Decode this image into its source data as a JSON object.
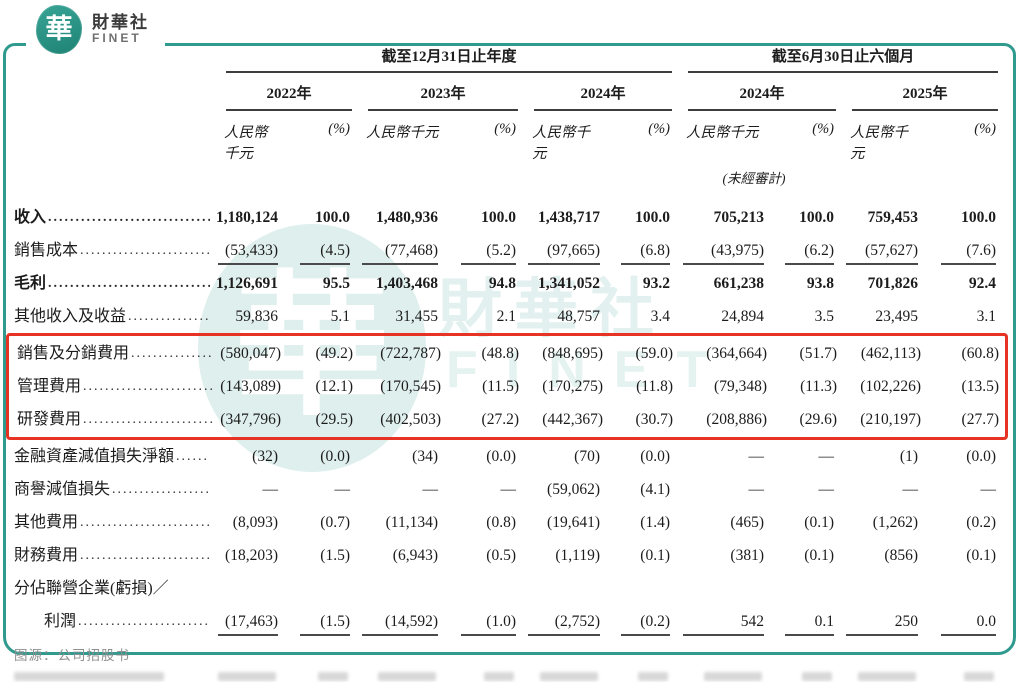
{
  "brand": {
    "logo_glyph": "華",
    "name_cn": "財華社",
    "name_en": "FINET"
  },
  "watermark": {
    "glyph": "華",
    "text_cn": "財華社",
    "text_en": "FINET"
  },
  "colors": {
    "frame_teal": "#2f9a8d",
    "logo_teal": "#1e8374",
    "highlight_red": "#e63323",
    "rule_gray": "#3d3d3d"
  },
  "table": {
    "groups": [
      {
        "label": "截至12月31日止年度"
      },
      {
        "label": "截至6月30日止六個月"
      }
    ],
    "years": [
      "2022年",
      "2023年",
      "2024年",
      "2024年",
      "2025年"
    ],
    "unit_amount": "人民幣千元",
    "unit_pct": "(%)",
    "unaudited": "(未經審計)",
    "leader": "..................................................................",
    "rows": [
      {
        "label": "收入",
        "leader": true,
        "bold": true,
        "ruled": false,
        "highlight": false,
        "indent": false,
        "values": [
          "1,180,124",
          "100.0",
          "1,480,936",
          "100.0",
          "1,438,717",
          "100.0",
          "705,213",
          "100.0",
          "759,453",
          "100.0"
        ]
      },
      {
        "label": "銷售成本",
        "leader": true,
        "bold": false,
        "ruled": true,
        "highlight": false,
        "indent": false,
        "values": [
          "(53,433)",
          "(4.5)",
          "(77,468)",
          "(5.2)",
          "(97,665)",
          "(6.8)",
          "(43,975)",
          "(6.2)",
          "(57,627)",
          "(7.6)"
        ]
      },
      {
        "label": "毛利",
        "leader": true,
        "bold": true,
        "ruled": false,
        "highlight": false,
        "indent": false,
        "values": [
          "1,126,691",
          "95.5",
          "1,403,468",
          "94.8",
          "1,341,052",
          "93.2",
          "661,238",
          "93.8",
          "701,826",
          "92.4"
        ]
      },
      {
        "label": "其他收入及收益",
        "leader": true,
        "bold": false,
        "ruled": false,
        "highlight": false,
        "indent": false,
        "values": [
          "59,836",
          "5.1",
          "31,455",
          "2.1",
          "48,757",
          "3.4",
          "24,894",
          "3.5",
          "23,495",
          "3.1"
        ]
      },
      {
        "label": "銷售及分銷費用",
        "leader": true,
        "bold": false,
        "ruled": false,
        "highlight": true,
        "indent": false,
        "values": [
          "(580,047)",
          "(49.2)",
          "(722,787)",
          "(48.8)",
          "(848,695)",
          "(59.0)",
          "(364,664)",
          "(51.7)",
          "(462,113)",
          "(60.8)"
        ]
      },
      {
        "label": "管理費用",
        "leader": true,
        "bold": false,
        "ruled": false,
        "highlight": true,
        "indent": false,
        "values": [
          "(143,089)",
          "(12.1)",
          "(170,545)",
          "(11.5)",
          "(170,275)",
          "(11.8)",
          "(79,348)",
          "(11.3)",
          "(102,226)",
          "(13.5)"
        ]
      },
      {
        "label": "研發費用",
        "leader": true,
        "bold": false,
        "ruled": false,
        "highlight": true,
        "indent": false,
        "values": [
          "(347,796)",
          "(29.5)",
          "(402,503)",
          "(27.2)",
          "(442,367)",
          "(30.7)",
          "(208,886)",
          "(29.6)",
          "(210,197)",
          "(27.7)"
        ]
      },
      {
        "label": "金融資產減值損失淨額",
        "leader": true,
        "bold": false,
        "ruled": false,
        "highlight": false,
        "indent": false,
        "values": [
          "(32)",
          "(0.0)",
          "(34)",
          "(0.0)",
          "(70)",
          "(0.0)",
          "—",
          "—",
          "(1)",
          "(0.0)"
        ]
      },
      {
        "label": "商譽減值損失",
        "leader": true,
        "bold": false,
        "ruled": false,
        "highlight": false,
        "indent": false,
        "values": [
          "—",
          "—",
          "—",
          "—",
          "(59,062)",
          "(4.1)",
          "—",
          "—",
          "—",
          "—"
        ]
      },
      {
        "label": "其他費用",
        "leader": true,
        "bold": false,
        "ruled": false,
        "highlight": false,
        "indent": false,
        "values": [
          "(8,093)",
          "(0.7)",
          "(11,134)",
          "(0.8)",
          "(19,641)",
          "(1.4)",
          "(465)",
          "(0.1)",
          "(1,262)",
          "(0.2)"
        ]
      },
      {
        "label": "財務費用",
        "leader": true,
        "bold": false,
        "ruled": false,
        "highlight": false,
        "indent": false,
        "values": [
          "(18,203)",
          "(1.5)",
          "(6,943)",
          "(0.5)",
          "(1,119)",
          "(0.1)",
          "(381)",
          "(0.1)",
          "(856)",
          "(0.1)"
        ]
      },
      {
        "label": "分佔聯營企業(虧損)／",
        "leader": false,
        "bold": false,
        "ruled": false,
        "highlight": false,
        "indent": false,
        "values": []
      },
      {
        "label": "利潤",
        "leader": true,
        "bold": false,
        "ruled": true,
        "highlight": false,
        "indent": true,
        "values": [
          "(17,463)",
          "(1.5)",
          "(14,592)",
          "(1.0)",
          "(2,752)",
          "(0.2)",
          "542",
          "0.1",
          "250",
          "0.0"
        ]
      }
    ],
    "source_note": "图源：公司招股书"
  }
}
